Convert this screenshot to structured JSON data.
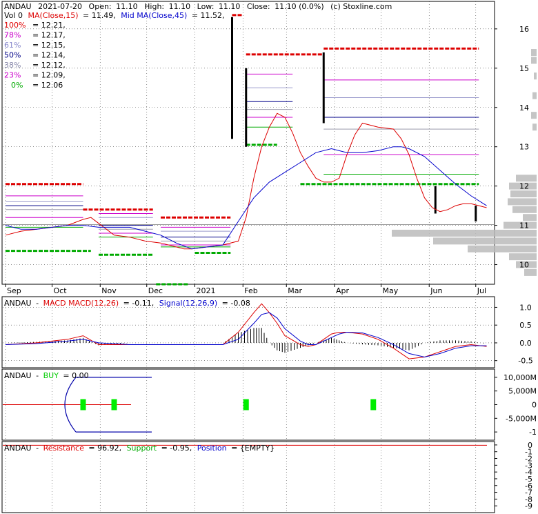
{
  "header": {
    "ticker": "ANDAU",
    "date": "2021-07-20",
    "open_label": "Open:",
    "open": "11.10",
    "high_label": "High:",
    "high": "11.10",
    "low_label": "Low:",
    "low": "11.10",
    "close_label": "Close:",
    "close": "11.10 (0.0%)",
    "source": "(c) Stoxline.com"
  },
  "legend": {
    "vol": "Vol 0",
    "ma15_label": "MA(Close,15)",
    "ma15_value": "= 11.49,",
    "ma45_label": "Mid MA(Close,45)",
    "ma45_value": "= 11.52,"
  },
  "fib_levels": [
    {
      "pct": "100%",
      "value": "= 12.21,",
      "color": "#e00000"
    },
    {
      "pct": "78%",
      "value": "= 12.17,",
      "color": "#cc00cc"
    },
    {
      "pct": "61%",
      "value": "= 12.15,",
      "color": "#8888cc"
    },
    {
      "pct": "50%",
      "value": "= 12.14,",
      "color": "#000088"
    },
    {
      "pct": "38%",
      "value": "= 12.12,",
      "color": "#8888aa"
    },
    {
      "pct": "23%",
      "value": "= 12.09,",
      "color": "#cc00cc"
    },
    {
      "pct": "0%",
      "value": "= 12.06",
      "color": "#00aa00"
    }
  ],
  "colors": {
    "ma15": "#dd0000",
    "ma45": "#0000cc",
    "resistance": "#dd0000",
    "support": "#00aa00",
    "fib100": "#dd0000",
    "fib78": "#cc00cc",
    "fib61": "#9999cc",
    "fib50": "#000088",
    "fib38": "#9999aa",
    "fib23": "#cc00cc",
    "fib0": "#00aa00",
    "volume_profile": "#bbbbbb",
    "buy_marker": "#00ee00",
    "grid": "#444444"
  },
  "chart_data": [
    {
      "type": "line",
      "title": "",
      "x_labels": [
        "Sep",
        "Oct",
        "Nov",
        "Dec",
        "2021",
        "Feb",
        "Mar",
        "Apr",
        "May",
        "Jun",
        "Jul"
      ],
      "x_label_days": [
        0,
        30,
        61,
        91,
        122,
        153,
        181,
        212,
        242,
        273,
        303
      ],
      "ylim": [
        9.5,
        16.7
      ],
      "y_ticks": [
        10,
        11,
        12,
        13,
        14,
        15,
        16
      ],
      "series": [
        {
          "name": "MA(Close,15)",
          "color": "#dd0000",
          "x": [
            0,
            10,
            20,
            30,
            40,
            50,
            55,
            60,
            70,
            80,
            90,
            100,
            110,
            115,
            120,
            130,
            140,
            150,
            155,
            160,
            165,
            170,
            175,
            180,
            185,
            190,
            195,
            200,
            205,
            210,
            215,
            220,
            225,
            230,
            240,
            250,
            255,
            260,
            265,
            270,
            275,
            280,
            285,
            290,
            295,
            300,
            305,
            310
          ],
          "y": [
            10.75,
            10.85,
            10.9,
            10.95,
            11.0,
            11.15,
            11.2,
            11.05,
            10.75,
            10.7,
            10.6,
            10.55,
            10.45,
            10.4,
            10.4,
            10.45,
            10.5,
            10.6,
            11.2,
            12.2,
            13.0,
            13.5,
            13.85,
            13.75,
            13.35,
            12.85,
            12.5,
            12.2,
            12.1,
            12.1,
            12.2,
            12.8,
            13.3,
            13.6,
            13.5,
            13.45,
            13.2,
            12.8,
            12.2,
            11.7,
            11.45,
            11.35,
            11.4,
            11.5,
            11.55,
            11.55,
            11.5,
            11.45
          ]
        },
        {
          "name": "Mid MA(Close,45)",
          "color": "#0000cc",
          "x": [
            0,
            10,
            20,
            30,
            40,
            50,
            60,
            70,
            80,
            90,
            100,
            110,
            120,
            130,
            140,
            150,
            160,
            170,
            180,
            190,
            200,
            210,
            215,
            220,
            230,
            240,
            250,
            255,
            260,
            270,
            280,
            290,
            300,
            310
          ],
          "y": [
            11.0,
            10.9,
            10.9,
            10.95,
            11.0,
            11.0,
            10.95,
            10.95,
            10.95,
            10.85,
            10.75,
            10.55,
            10.4,
            10.45,
            10.5,
            11.1,
            11.7,
            12.1,
            12.35,
            12.6,
            12.85,
            12.95,
            12.9,
            12.85,
            12.85,
            12.9,
            13.0,
            13.0,
            12.95,
            12.75,
            12.4,
            12.05,
            11.75,
            11.5
          ]
        }
      ],
      "resistance_segments": [
        {
          "x0": 0,
          "x1": 50,
          "y": 12.05
        },
        {
          "x0": 50,
          "x1": 95,
          "y": 11.4
        },
        {
          "x0": 100,
          "x1": 145,
          "y": 11.2
        },
        {
          "x0": 146,
          "x1": 153,
          "y": 16.35
        },
        {
          "x0": 155,
          "x1": 205,
          "y": 15.35
        },
        {
          "x0": 205,
          "x1": 305,
          "y": 15.5
        }
      ],
      "support_segments": [
        {
          "x0": 0,
          "x1": 55,
          "y": 10.35
        },
        {
          "x0": 60,
          "x1": 95,
          "y": 10.25
        },
        {
          "x0": 97,
          "x1": 118,
          "y": 9.5
        },
        {
          "x0": 122,
          "x1": 145,
          "y": 10.3
        },
        {
          "x0": 155,
          "x1": 175,
          "y": 13.05
        },
        {
          "x0": 190,
          "x1": 305,
          "y": 12.05
        }
      ],
      "fib_segments": [
        {
          "x0": 0,
          "x1": 50,
          "levels": [
            11.75,
            11.6,
            11.5,
            11.4,
            11.2,
            10.95
          ]
        },
        {
          "x0": 60,
          "x1": 95,
          "levels": [
            11.3,
            11.2,
            11.0,
            10.9,
            10.8,
            10.7
          ]
        },
        {
          "x0": 100,
          "x1": 145,
          "levels": [
            10.95,
            10.85,
            10.7,
            10.6,
            10.5,
            10.45
          ]
        },
        {
          "x0": 155,
          "x1": 185,
          "levels": [
            14.85,
            14.5,
            14.15,
            13.95,
            13.75,
            13.5
          ]
        },
        {
          "x0": 205,
          "x1": 305,
          "levels": [
            14.7,
            14.25,
            13.75,
            13.45,
            12.8,
            12.3
          ]
        }
      ],
      "price_bars": [
        {
          "x": 146,
          "low": 13.2,
          "high": 16.3
        },
        {
          "x": 155,
          "low": 13.0,
          "high": 15.0
        },
        {
          "x": 205,
          "low": 13.6,
          "high": 15.4
        },
        {
          "x": 277,
          "low": 11.3,
          "high": 12.0
        },
        {
          "x": 303,
          "low": 11.1,
          "high": 11.5
        }
      ],
      "volume_profile": [
        {
          "y": 15.4,
          "w": 8
        },
        {
          "y": 15.2,
          "w": 8
        },
        {
          "y": 14.8,
          "w": 4
        },
        {
          "y": 14.3,
          "w": 6
        },
        {
          "y": 13.8,
          "w": 8
        },
        {
          "y": 13.5,
          "w": 6
        },
        {
          "y": 12.2,
          "w": 30
        },
        {
          "y": 12.0,
          "w": 40
        },
        {
          "y": 11.8,
          "w": 38
        },
        {
          "y": 11.6,
          "w": 42
        },
        {
          "y": 11.4,
          "w": 35
        },
        {
          "y": 11.2,
          "w": 20
        },
        {
          "y": 11.0,
          "w": 48
        },
        {
          "y": 10.8,
          "w": 210
        },
        {
          "y": 10.6,
          "w": 150
        },
        {
          "y": 10.4,
          "w": 100
        },
        {
          "y": 10.2,
          "w": 40
        },
        {
          "y": 10.0,
          "w": 30
        },
        {
          "y": 9.8,
          "w": 18
        }
      ]
    },
    {
      "type": "line",
      "title": "",
      "ticker": "ANDAU",
      "label": "MACD",
      "macd_label": "MACD(12,26)",
      "macd_value": "= -0.11,",
      "signal_label": "Signal(12,26,9)",
      "signal_value": "= -0.08",
      "ylim": [
        -0.7,
        1.3
      ],
      "y_ticks": [
        "1.0",
        "0.5",
        "0.0",
        "-0.5"
      ],
      "y_tick_values": [
        1.0,
        0.5,
        0.0,
        -0.5
      ],
      "series": [
        {
          "name": "MACD",
          "color": "#dd0000",
          "x": [
            0,
            20,
            40,
            50,
            60,
            80,
            100,
            120,
            140,
            150,
            160,
            165,
            170,
            175,
            180,
            190,
            195,
            200,
            205,
            210,
            215,
            220,
            230,
            240,
            250,
            260,
            270,
            280,
            290,
            300,
            310
          ],
          "y": [
            -0.05,
            0.0,
            0.1,
            0.2,
            -0.05,
            -0.05,
            -0.05,
            -0.05,
            -0.05,
            0.3,
            0.85,
            1.1,
            0.85,
            0.55,
            0.2,
            -0.05,
            -0.1,
            -0.05,
            0.1,
            0.25,
            0.3,
            0.3,
            0.25,
            0.1,
            -0.15,
            -0.45,
            -0.4,
            -0.25,
            -0.1,
            -0.05,
            -0.1
          ]
        },
        {
          "name": "Signal",
          "color": "#0000cc",
          "x": [
            0,
            20,
            40,
            50,
            60,
            80,
            100,
            120,
            140,
            150,
            160,
            165,
            170,
            175,
            180,
            190,
            195,
            200,
            205,
            210,
            215,
            220,
            230,
            240,
            250,
            260,
            270,
            280,
            290,
            300,
            310
          ],
          "y": [
            -0.05,
            -0.02,
            0.05,
            0.1,
            0.0,
            -0.05,
            -0.05,
            -0.05,
            -0.05,
            0.1,
            0.55,
            0.8,
            0.85,
            0.7,
            0.4,
            0.05,
            -0.05,
            -0.05,
            0.05,
            0.15,
            0.25,
            0.3,
            0.28,
            0.15,
            -0.05,
            -0.3,
            -0.4,
            -0.3,
            -0.15,
            -0.08,
            -0.08
          ]
        }
      ]
    },
    {
      "type": "line",
      "title": "",
      "ticker": "ANDAU",
      "buy_label": "BUY",
      "buy_value": "= 0.00",
      "ylim": [
        -1.3,
        1.3
      ],
      "y_ticks": [
        "10,000M",
        "5,000M",
        "0",
        "-5,000M",
        "-1"
      ],
      "y_tick_values": [
        1.0,
        0.5,
        0.0,
        -0.5,
        -1.0
      ],
      "buy_markers": [
        50,
        70,
        155,
        237
      ]
    },
    {
      "type": "line",
      "title": "",
      "ticker": "ANDAU",
      "resistance_label": "Resistance",
      "resistance_value": "= 96.92,",
      "support_label": "Support",
      "support_value": "= -0.95,",
      "position_label": "Position",
      "position_value": "= {EMPTY}",
      "ylim": [
        -10,
        0.5
      ],
      "y_ticks": [
        "0",
        "-1",
        "-2",
        "-3",
        "-4",
        "-5",
        "-6",
        "-7",
        "-8",
        "-9"
      ],
      "y_tick_values": [
        0,
        -1,
        -2,
        -3,
        -4,
        -5,
        -6,
        -7,
        -8,
        -9
      ]
    }
  ]
}
